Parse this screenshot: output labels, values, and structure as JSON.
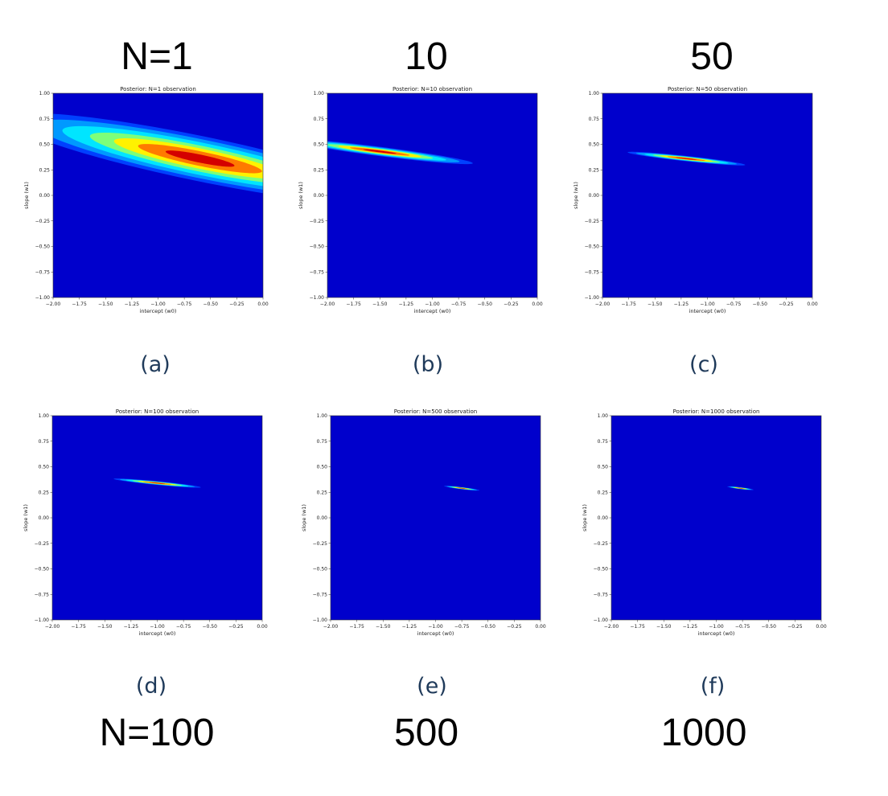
{
  "header_labels": [
    "N=1",
    "10",
    "50"
  ],
  "footer_labels": [
    "N=100",
    "500",
    "1000"
  ],
  "subfig_labels": [
    "(a)",
    "(b)",
    "(c)",
    "(d)",
    "(e)",
    "(f)"
  ],
  "colors": {
    "background": "#0000cc",
    "colormap": "jet"
  },
  "chart_data": [
    {
      "type": "heatmap",
      "title": "Posterior: N=1 observation",
      "xlabel": "intercept (w0)",
      "ylabel": "slope (w1)",
      "xlim": [
        -2.0,
        0.0
      ],
      "ylim": [
        -1.0,
        1.0
      ],
      "xticks": [
        "−2.00",
        "−1.75",
        "−1.50",
        "−1.25",
        "−1.00",
        "−0.75",
        "−0.50",
        "−0.25",
        "0.00"
      ],
      "yticks": [
        "1.00",
        "0.75",
        "0.50",
        "0.25",
        "0.00",
        "−0.25",
        "−0.50",
        "−0.75",
        "−1.00"
      ],
      "contour": {
        "mean": [
          -0.6,
          0.36
        ],
        "cov": [
          [
            0.43,
            -0.09
          ],
          [
            -0.09,
            0.0253
          ]
        ]
      }
    },
    {
      "type": "heatmap",
      "title": "Posterior: N=10 observation",
      "xlabel": "intercept (w0)",
      "ylabel": "slope (w1)",
      "xlim": [
        -2.0,
        0.0
      ],
      "ylim": [
        -1.0,
        1.0
      ],
      "xticks": [
        "−2.00",
        "−1.75",
        "−1.50",
        "−1.25",
        "−1.00",
        "−0.75",
        "−0.50",
        "−0.25",
        "0.00"
      ],
      "yticks": [
        "1.00",
        "0.75",
        "0.50",
        "0.25",
        "0.00",
        "−0.25",
        "−0.50",
        "−0.75",
        "−1.00"
      ],
      "contour": {
        "mean": [
          -1.5,
          0.43
        ],
        "cov": [
          [
            0.1,
            -0.013
          ],
          [
            -0.013,
            0.00196
          ]
        ]
      }
    },
    {
      "type": "heatmap",
      "title": "Posterior: N=50 observation",
      "xlabel": "intercept (w0)",
      "ylabel": "slope (w1)",
      "xlim": [
        -2.0,
        0.0
      ],
      "ylim": [
        -1.0,
        1.0
      ],
      "xticks": [
        "−2.00",
        "−1.75",
        "−1.50",
        "−1.25",
        "−1.00",
        "−0.75",
        "−0.50",
        "−0.25",
        "0.00"
      ],
      "yticks": [
        "1.00",
        "0.75",
        "0.50",
        "0.25",
        "0.00",
        "−0.25",
        "−0.50",
        "−0.75",
        "−1.00"
      ],
      "contour": {
        "mean": [
          -1.2,
          0.36
        ],
        "cov": [
          [
            0.04,
            -0.0044
          ],
          [
            -0.0044,
            0.00057
          ]
        ]
      }
    },
    {
      "type": "heatmap",
      "title": "Posterior: N=100 observation",
      "xlabel": "intercept (w0)",
      "ylabel": "slope (w1)",
      "xlim": [
        -2.0,
        0.0
      ],
      "ylim": [
        -1.0,
        1.0
      ],
      "xticks": [
        "−2.00",
        "−1.75",
        "−1.50",
        "−1.25",
        "−1.00",
        "−0.75",
        "−0.50",
        "−0.25",
        "0.00"
      ],
      "yticks": [
        "1.00",
        "0.75",
        "0.50",
        "0.25",
        "0.00",
        "−0.25",
        "−0.50",
        "−0.75",
        "−1.00"
      ],
      "contour": {
        "mean": [
          -1.0,
          0.34
        ],
        "cov": [
          [
            0.022,
            -0.0022
          ],
          [
            -0.0022,
            0.00026
          ]
        ]
      }
    },
    {
      "type": "heatmap",
      "title": "Posterior: N=500 observation",
      "xlabel": "intercept (w0)",
      "ylabel": "slope (w1)",
      "xlim": [
        -2.0,
        0.0
      ],
      "ylim": [
        -1.0,
        1.0
      ],
      "xticks": [
        "−2.00",
        "−1.75",
        "−1.50",
        "−1.25",
        "−1.00",
        "−0.75",
        "−0.50",
        "−0.25",
        "0.00"
      ],
      "yticks": [
        "1.00",
        "0.75",
        "0.50",
        "0.25",
        "0.00",
        "−0.25",
        "−0.50",
        "−0.75",
        "−1.00"
      ],
      "contour": {
        "mean": [
          -0.75,
          0.29
        ],
        "cov": [
          [
            0.0036,
            -0.00045
          ],
          [
            -0.00045,
            7e-05
          ]
        ]
      }
    },
    {
      "type": "heatmap",
      "title": "Posterior: N=1000 observation",
      "xlabel": "intercept (w0)",
      "ylabel": "slope (w1)",
      "xlim": [
        -2.0,
        0.0
      ],
      "ylim": [
        -1.0,
        1.0
      ],
      "xticks": [
        "−2.00",
        "−1.75",
        "−1.50",
        "−1.25",
        "−1.00",
        "−0.75",
        "−0.50",
        "−0.25",
        "0.00"
      ],
      "yticks": [
        "1.00",
        "0.75",
        "0.50",
        "0.25",
        "0.00",
        "−0.25",
        "−0.50",
        "−0.75",
        "−1.00"
      ],
      "contour": {
        "mean": [
          -0.77,
          0.29
        ],
        "cov": [
          [
            0.002,
            -0.00025
          ],
          [
            -0.00025,
            4.2e-05
          ]
        ]
      }
    }
  ]
}
